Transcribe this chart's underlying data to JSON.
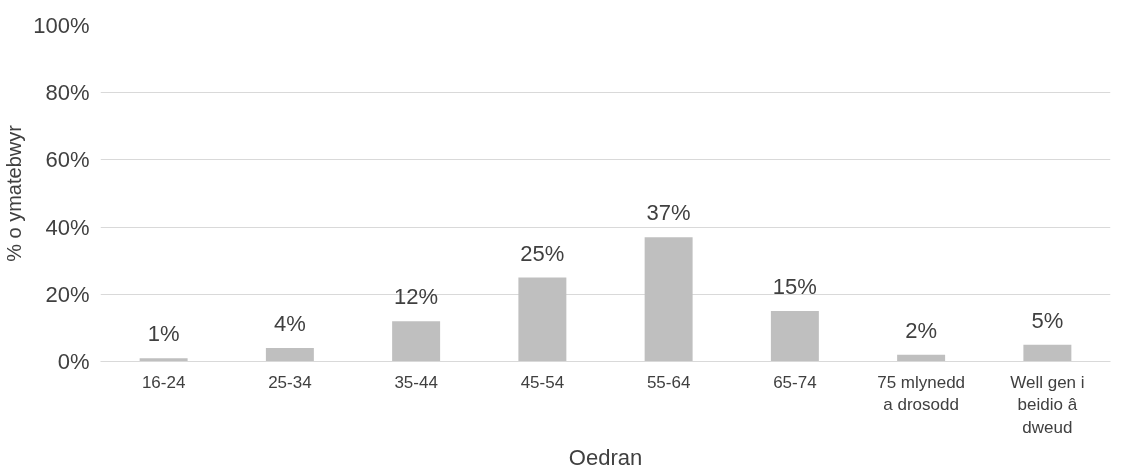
{
  "chart_data": {
    "type": "bar",
    "xlabel": "Oedran",
    "ylabel": "% o ymatebwyr",
    "categories": [
      "16-24",
      "25-34",
      "35-44",
      "45-54",
      "55-64",
      "65-74",
      "75 mlynedd a drosodd",
      "Well gen i beidio â dweud"
    ],
    "values": [
      1,
      4,
      12,
      25,
      37,
      15,
      2,
      5
    ],
    "value_labels": [
      "1%",
      "4%",
      "12%",
      "25%",
      "37%",
      "15%",
      "2%",
      "5%"
    ],
    "color": "#bfbfbf",
    "ylim": [
      0,
      100
    ],
    "yticks": [
      {
        "value": 0,
        "label": "0%"
      },
      {
        "value": 20,
        "label": "20%"
      },
      {
        "value": 40,
        "label": "40%"
      },
      {
        "value": 60,
        "label": "60%"
      },
      {
        "value": 80,
        "label": "80%"
      },
      {
        "value": 100,
        "label": "100%"
      }
    ],
    "grid": "y"
  }
}
